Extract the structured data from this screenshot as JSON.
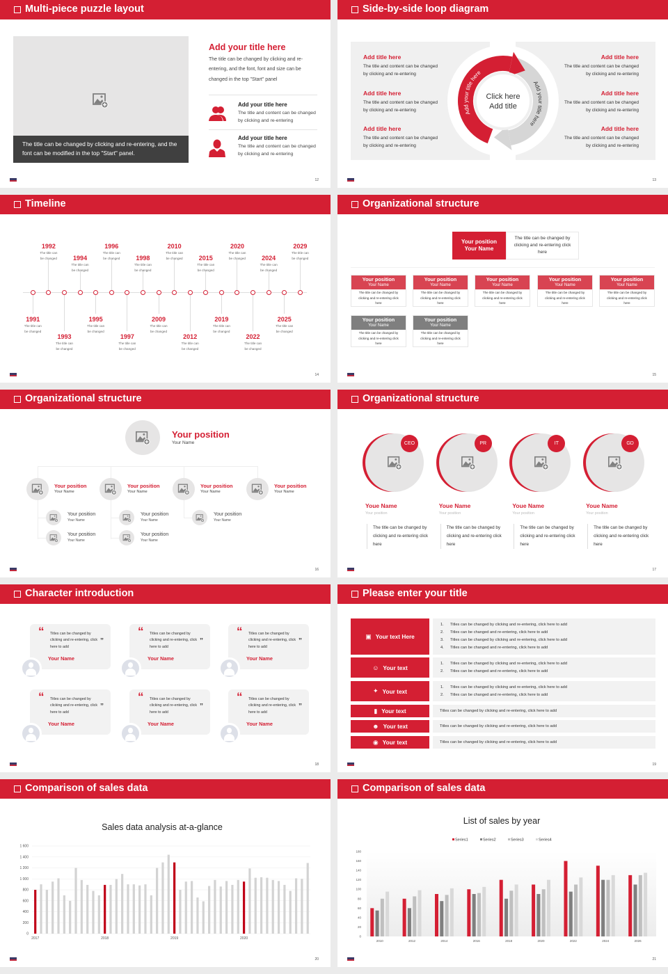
{
  "accent": "#d41f33",
  "puzzle": {
    "title": "Multi-piece puzzle layout",
    "page": "12",
    "image_icon": "image-add-icon",
    "caption": "The title can be changed by clicking and re-entering, and the font can be modified in the top \"Start\" panel.",
    "heading": "Add your title here",
    "paragraph": "The title can be changed by clicking and re-entering, and the font, font and size can be changed in the top \"Start\" panel",
    "items": [
      {
        "icon": "users-icon",
        "title": "Add your title here",
        "text": "The title and content can be changed by clicking and re-entering"
      },
      {
        "icon": "user-icon",
        "title": "Add your title here",
        "text": "The title and content can be changed by clicking and re-entering"
      }
    ]
  },
  "loop": {
    "title": "Side-by-side loop diagram",
    "page": "13",
    "center_line1": "Click here",
    "center_line2": "Add title",
    "arc_left": "Add your title here",
    "arc_right": "Add your title here",
    "left_items": [
      {
        "title": "Add title here",
        "text": "The title and content can be changed by clicking and re-entering"
      },
      {
        "title": "Add title here",
        "text": "The title and content can be changed by clicking and re-entering"
      },
      {
        "title": "Add title here",
        "text": "The title and content can be changed by clicking and re-entering"
      }
    ],
    "right_items": [
      {
        "title": "Add title here",
        "text": "The title and content can be changed by clicking and re-entering"
      },
      {
        "title": "Add title here",
        "text": "The title and content can be changed by clicking and re-entering"
      },
      {
        "title": "Add title here",
        "text": "The title and content can be changed by clicking and re-entering"
      }
    ]
  },
  "timeline": {
    "title": "Timeline",
    "page": "14",
    "events": [
      {
        "year": "1991",
        "text": "The title can be changed"
      },
      {
        "year": "1992",
        "text": "The title can be changed"
      },
      {
        "year": "1993",
        "text": "The title can be changed"
      },
      {
        "year": "1994",
        "text": "The title can be changed"
      },
      {
        "year": "1995",
        "text": "The title can be changed"
      },
      {
        "year": "1996",
        "text": "The title can be changed"
      },
      {
        "year": "1997",
        "text": "The title can be changed"
      },
      {
        "year": "1998",
        "text": "The title can be changed"
      },
      {
        "year": "2009",
        "text": "The title can be changed"
      },
      {
        "year": "2010",
        "text": "The title can be changed"
      },
      {
        "year": "2012",
        "text": "The title can be changed"
      },
      {
        "year": "2015",
        "text": "The title can be changed"
      },
      {
        "year": "2019",
        "text": "The title can be changed"
      },
      {
        "year": "2020",
        "text": "The title can be changed"
      },
      {
        "year": "2022",
        "text": "The title can be changed"
      },
      {
        "year": "2024",
        "text": "The title can be changed"
      },
      {
        "year": "2025",
        "text": "The title can be changed"
      },
      {
        "year": "2029",
        "text": "The title can be changed"
      }
    ]
  },
  "org1": {
    "title": "Organizational structure",
    "page": "15",
    "top": {
      "position": "Your position",
      "name": "Your Name",
      "desc": "The title can be changed by clicking and re-entering click here"
    },
    "row1": [
      {
        "position": "Your position",
        "name": "Your Name",
        "desc": "The title can be changed by clicking and re-entering click here"
      },
      {
        "position": "Your position",
        "name": "Your Name",
        "desc": "The title can be changed by clicking and re-entering click here"
      },
      {
        "position": "Your position",
        "name": "Your Name",
        "desc": "The title can be changed by clicking and re-entering click here"
      },
      {
        "position": "Your position",
        "name": "Your Name",
        "desc": "The title can be changed by clicking and re-entering click here"
      },
      {
        "position": "Your position",
        "name": "Your Name",
        "desc": "The title can be changed by clicking and re-entering click here"
      }
    ],
    "row2": [
      {
        "position": "Your position",
        "name": "Your Name",
        "desc": "The title can be changed by clicking and re-entering click here"
      },
      {
        "position": "Your position",
        "name": "Your Name",
        "desc": "The title can be changed by clicking and re-entering click here"
      }
    ],
    "colors": {
      "row1": "#d84452",
      "row2": "#7f7f7f"
    }
  },
  "org2": {
    "title": "Organizational structure",
    "page": "16",
    "top": {
      "position": "Your position",
      "name": "Your Name"
    },
    "branches": [
      {
        "position": "Your position",
        "name": "Your Name",
        "children": [
          {
            "position": "Your position",
            "name": "Your Name"
          },
          {
            "position": "Your position",
            "name": "Your Name"
          }
        ]
      },
      {
        "position": "Your position",
        "name": "Your Name",
        "children": [
          {
            "position": "Your position",
            "name": "Your Name"
          },
          {
            "position": "Your position",
            "name": "Your Name"
          }
        ]
      },
      {
        "position": "Your position",
        "name": "Your Name",
        "children": [
          {
            "position": "Your position",
            "name": "Your Name"
          }
        ]
      },
      {
        "position": "Your position",
        "name": "Your Name",
        "children": []
      }
    ]
  },
  "org3": {
    "title": "Organizational structure",
    "page": "17",
    "members": [
      {
        "badge": "CEO",
        "name": "Youe Name",
        "position": "Your position",
        "desc": "The title can be changed by clicking and re-entering click here"
      },
      {
        "badge": "PR",
        "name": "Youe Name",
        "position": "Your position",
        "desc": "The title can be changed by clicking and re-entering click here"
      },
      {
        "badge": "IT",
        "name": "Youe Name",
        "position": "Your position",
        "desc": "The title can be changed by clicking and re-entering click here"
      },
      {
        "badge": "GD",
        "name": "Youe Name",
        "position": "Your position",
        "desc": "The title can be changed by clicking and re-entering click here"
      }
    ]
  },
  "characters": {
    "title": "Character introduction",
    "page": "18",
    "cards": [
      {
        "quote": "Titles can be changed by clicking and re-entering, click here to add",
        "name": "Your Name"
      },
      {
        "quote": "Titles can be changed by clicking and re-entering, click here to add",
        "name": "Your Name"
      },
      {
        "quote": "Titles can be changed by clicking and re-entering, click here to add",
        "name": "Your Name"
      },
      {
        "quote": "Titles can be changed by clicking and re-entering, click here to add",
        "name": "Your Name"
      },
      {
        "quote": "Titles can be changed by clicking and re-entering, click here to add",
        "name": "Your Name"
      },
      {
        "quote": "Titles can be changed by clicking and re-entering, click here to add",
        "name": "Your Name"
      }
    ]
  },
  "table": {
    "title": "Please enter your title",
    "page": "19",
    "rows": [
      {
        "icon": "presentation-icon",
        "label": "Your text Here",
        "numbered": true,
        "items": [
          "Titles can be changed by clicking and re-entering, click here to add",
          "Titles can be changed and re-entering, click here to add",
          "Titles can be changed by clicking and re-entering, click here to add",
          "Titles can be changed and re-entering, click here to add"
        ]
      },
      {
        "icon": "user-card-icon",
        "label": "Your text",
        "numbered": true,
        "items": [
          "Titles can be changed by clicking and re-entering, click here to add",
          "Titles can be changed and re-entering, click here to add"
        ]
      },
      {
        "icon": "shield-icon",
        "label": "Your text",
        "numbered": true,
        "items": [
          "Titles can be changed by clicking and re-entering, click here to add",
          "Titles can be changed and re-entering, click here to add"
        ]
      },
      {
        "icon": "bar-chart-icon",
        "label": "Your text",
        "numbered": false,
        "items": [
          "Titles can be changed by clicking and re-entering, click here to add"
        ]
      },
      {
        "icon": "team-icon",
        "label": "Your text",
        "numbered": false,
        "items": [
          "Titles can be changed by clicking and re-entering, click here to add"
        ]
      },
      {
        "icon": "hand-person-icon",
        "label": "Your text",
        "numbered": false,
        "items": [
          "Titles can be changed by clicking and re-entering, click here to add"
        ]
      }
    ]
  },
  "sales1": {
    "title": "Comparison of sales data",
    "page": "20"
  },
  "sales2": {
    "title": "Comparison of sales data",
    "page": "21"
  },
  "chart_data": [
    {
      "type": "bar",
      "title": "Sales data analysis at-a-glance",
      "x_tick_labels": [
        "2017",
        "2018",
        "2019",
        "2020"
      ],
      "ylim": [
        0,
        1600
      ],
      "y_ticks": [
        "0",
        "200",
        "400",
        "600",
        "800",
        "1 000",
        "1 200",
        "1 400",
        "1 600"
      ],
      "grid": true,
      "highlight_color": "#c00018",
      "bar_color": "#d3d3d3",
      "highlighted_indices": [
        0,
        12,
        24,
        36
      ],
      "values": [
        800,
        900,
        800,
        950,
        1010,
        700,
        600,
        1200,
        980,
        890,
        780,
        700,
        890,
        890,
        995,
        1090,
        900,
        900,
        880,
        900,
        700,
        1200,
        1300,
        1440,
        1300,
        800,
        950,
        960,
        660,
        590,
        870,
        980,
        860,
        960,
        890,
        980,
        950,
        1190,
        1020,
        1030,
        1020,
        980,
        960,
        890,
        780,
        1010,
        1000,
        1290
      ]
    },
    {
      "type": "bar",
      "title": "List of sales by year",
      "categories": [
        "2010",
        "2012",
        "2014",
        "2016",
        "2018",
        "2020",
        "2022",
        "2024",
        "2026"
      ],
      "ylim": [
        0,
        180
      ],
      "y_ticks": [
        "0",
        "20",
        "40",
        "60",
        "80",
        "100",
        "120",
        "140",
        "160",
        "180"
      ],
      "legend": "top",
      "series": [
        {
          "name": "Series1",
          "color": "#d41f33",
          "values": [
            60,
            80,
            90,
            100,
            120,
            110,
            160,
            150,
            130
          ]
        },
        {
          "name": "Series2",
          "color": "#7f7f7f",
          "values": [
            55,
            60,
            75,
            90,
            80,
            90,
            95,
            120,
            110
          ]
        },
        {
          "name": "Series3",
          "color": "#bfbfbf",
          "values": [
            80,
            85,
            88,
            92,
            97,
            100,
            110,
            120,
            130
          ]
        },
        {
          "name": "Series4",
          "color": "#d9d9d9",
          "values": [
            95,
            98,
            102,
            105,
            110,
            120,
            125,
            130,
            135
          ]
        }
      ]
    }
  ]
}
